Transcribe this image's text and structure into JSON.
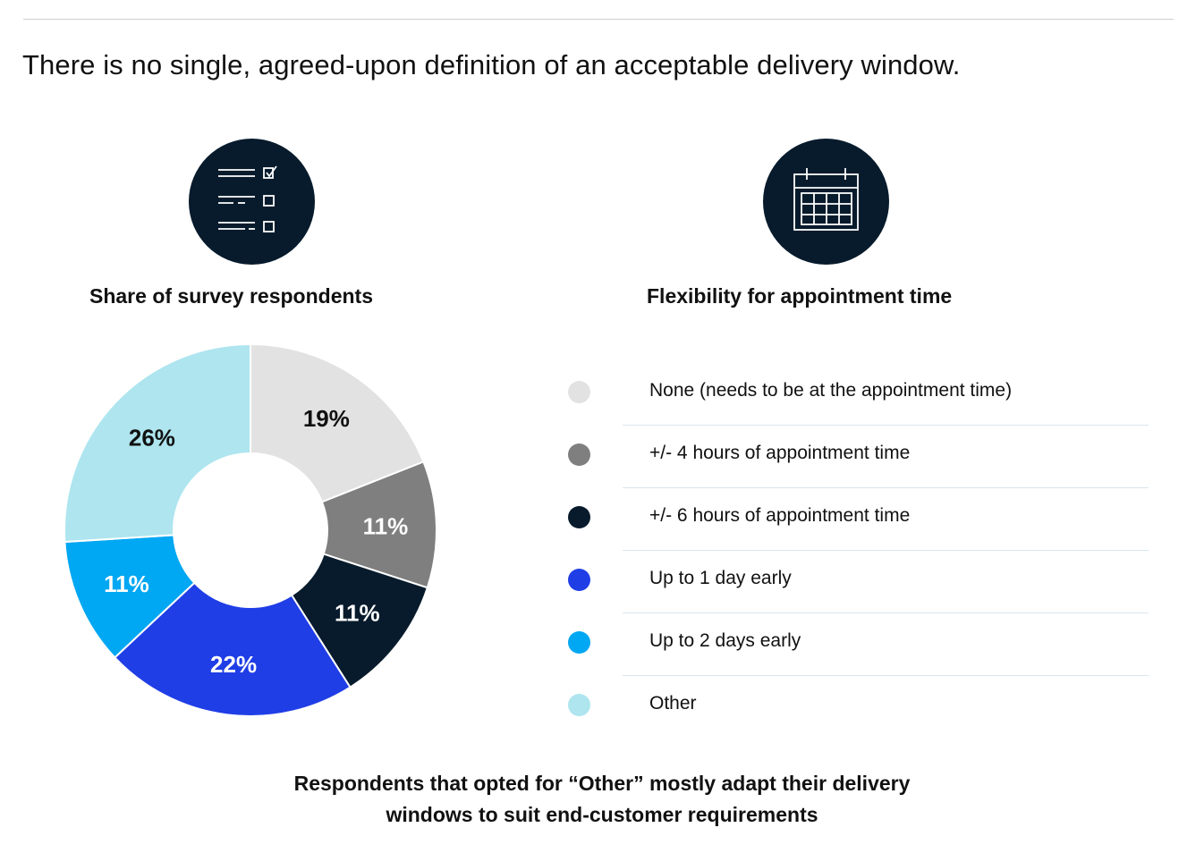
{
  "headline": "There is no single, agreed-upon definition of an acceptable delivery window.",
  "left": {
    "title": "Share of survey respondents",
    "icon": "checklist-icon"
  },
  "right": {
    "title": "Flexibility for appointment time",
    "icon": "calendar-icon"
  },
  "colors": {
    "icon_bg": "#071b2c",
    "none": "#e2e2e2",
    "four_hours": "#7f7f7f",
    "six_hours": "#071b2c",
    "one_day": "#1f3ee6",
    "two_days": "#00a7f2",
    "other": "#aee5ef"
  },
  "legend": [
    {
      "label": "None (needs to be at the appointment time)",
      "color": "#e2e2e2"
    },
    {
      "label": "+/- 4 hours of appointment time",
      "color": "#7f7f7f"
    },
    {
      "label": "+/- 6 hours of appointment time",
      "color": "#071b2c"
    },
    {
      "label": "Up to 1 day early",
      "color": "#1f3ee6"
    },
    {
      "label": "Up to 2 days early",
      "color": "#00a7f2"
    },
    {
      "label": "Other",
      "color": "#aee5ef"
    }
  ],
  "chart_data": {
    "type": "pie",
    "donut": true,
    "title": "Share of survey respondents",
    "unit": "%",
    "categories": [
      "None (needs to be at the appointment time)",
      "+/- 4 hours of appointment time",
      "+/- 6 hours of appointment time",
      "Up to 1 day early",
      "Up to 2 days early",
      "Other"
    ],
    "values": [
      19,
      11,
      11,
      22,
      11,
      26
    ],
    "labels": [
      "19%",
      "11%",
      "11%",
      "22%",
      "11%",
      "26%"
    ],
    "colors": [
      "#e2e2e2",
      "#7f7f7f",
      "#071b2c",
      "#1f3ee6",
      "#00a7f2",
      "#aee5ef"
    ],
    "label_colors": [
      "#111111",
      "#ffffff",
      "#ffffff",
      "#ffffff",
      "#ffffff",
      "#111111"
    ],
    "legend_position": "right"
  },
  "footnote": {
    "line1": "Respondents that opted for “Other” mostly adapt their delivery",
    "line2": "windows to suit end-customer requirements"
  }
}
